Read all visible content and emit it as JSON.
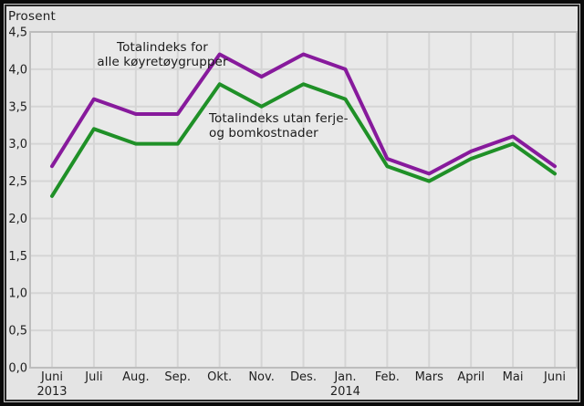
{
  "colors": {
    "background": "#e4e4e4",
    "plot_background": "#e9e9e9",
    "gridline": "#d5d5d5",
    "plot_border": "#bdbdbd",
    "text": "#1f1f1f",
    "frame": "#0a0a0a",
    "series_alle_koyretoygrupper": "#871a9c",
    "series_utan_ferje_bom": "#1f9027"
  },
  "chart_data": {
    "type": "line",
    "title": "",
    "unit_label": "Prosent",
    "xlabel": "",
    "ylabel": "Prosent",
    "categories": [
      "Juni",
      "Juli",
      "Aug.",
      "Sep.",
      "Okt.",
      "Nov.",
      "Des.",
      "Jan.",
      "Feb.",
      "Mars",
      "April",
      "Mai",
      "Juni"
    ],
    "x_year_labels": [
      {
        "index": 0,
        "label": "2013"
      },
      {
        "index": 7,
        "label": "2014"
      }
    ],
    "y_axis": {
      "min": 0,
      "max": 4.5,
      "step": 0.5,
      "tick_labels": [
        "0,0",
        "0,5",
        "1,0",
        "1,5",
        "2,0",
        "2,5",
        "3,0",
        "3,5",
        "4,0",
        "4,5"
      ]
    },
    "grid": true,
    "legend_position": "inline-annotations",
    "series": [
      {
        "name": "Totalindeks for alle køyretøygrupper",
        "color": "#871a9c",
        "values": [
          2.7,
          3.6,
          3.4,
          3.4,
          4.2,
          3.9,
          4.2,
          4.0,
          2.8,
          2.6,
          2.9,
          3.1,
          2.7
        ]
      },
      {
        "name": "Totalindeks utan ferje- og bomkostnader",
        "color": "#1f9027",
        "values": [
          2.3,
          3.2,
          3.0,
          3.0,
          3.8,
          3.5,
          3.8,
          3.6,
          2.7,
          2.5,
          2.8,
          3.0,
          2.6
        ]
      }
    ],
    "annotations": [
      {
        "id": "alle",
        "text": "Totalindeks for\nalle køyretøygrupper"
      },
      {
        "id": "utan",
        "text": "Totalindeks utan ferje-\nog bomkostnader"
      }
    ]
  }
}
